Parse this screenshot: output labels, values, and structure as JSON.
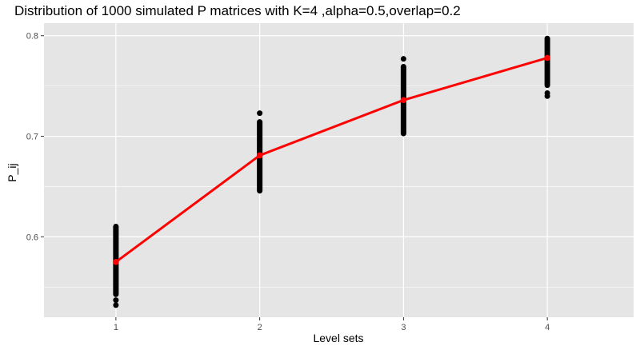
{
  "chart_data": {
    "type": "scatter",
    "title": "Distribution of 1000 simulated P matrices with K=4 ,alpha=0.5,overlap=0.2",
    "xlabel": "Level sets",
    "ylabel": "P_ij",
    "x_ticks": [
      "1",
      "2",
      "3",
      "4"
    ],
    "y_ticks": [
      0.6,
      0.7,
      0.8
    ],
    "xlim": [
      0.5,
      4.6
    ],
    "ylim": [
      0.52,
      0.8125
    ],
    "grid": true,
    "legend": "none",
    "colors": {
      "points": "#000000",
      "mean_line": "#ff0000",
      "panel": "#e5e5e5",
      "grid": "#ffffff"
    },
    "point_ranges": [
      {
        "x": 1,
        "min": 0.54,
        "max": 0.613,
        "outliers": [
          0.532,
          0.537
        ]
      },
      {
        "x": 2,
        "min": 0.643,
        "max": 0.717,
        "outliers": [
          0.723
        ]
      },
      {
        "x": 3,
        "min": 0.7,
        "max": 0.772,
        "outliers": [
          0.777
        ]
      },
      {
        "x": 4,
        "min": 0.748,
        "max": 0.8,
        "outliers": [
          0.74,
          0.743
        ]
      }
    ],
    "mean_line": {
      "x": [
        1,
        2,
        3,
        4
      ],
      "y": [
        0.575,
        0.681,
        0.736,
        0.778
      ]
    }
  }
}
